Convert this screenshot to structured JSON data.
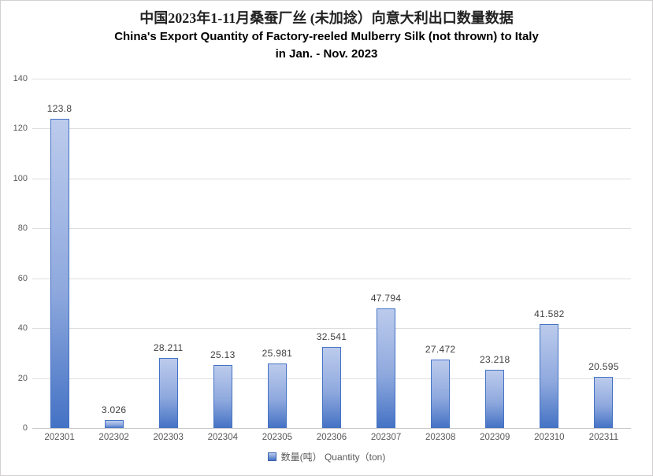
{
  "title": {
    "line1": "中国2023年1-11月桑蚕厂丝 (未加捻）向意大利出口数量数据",
    "line2": "China's Export Quantity of Factory-reeled Mulberry Silk (not thrown) to Italy",
    "line3": "in Jan. - Nov. 2023"
  },
  "legend": {
    "label": "数量(吨） Quantity（ton)"
  },
  "chart_data": {
    "type": "bar",
    "title": "中国2023年1-11月桑蚕厂丝 (未加捻）向意大利出口数量数据",
    "subtitle": "China's Export Quantity of Factory-reeled Mulberry Silk (not thrown) to Italy in Jan. - Nov. 2023",
    "categories": [
      "202301",
      "202302",
      "202303",
      "202304",
      "202305",
      "202306",
      "202307",
      "202308",
      "202309",
      "202310",
      "202311"
    ],
    "values": [
      123.8,
      3.026,
      28.211,
      25.13,
      25.981,
      32.541,
      47.794,
      27.472,
      23.218,
      41.582,
      20.595
    ],
    "value_labels": [
      "123.8",
      "3.026",
      "28.211",
      "25.13",
      "25.981",
      "32.541",
      "47.794",
      "27.472",
      "23.218",
      "41.582",
      "20.595"
    ],
    "series_name": "数量(吨） Quantity（ton)",
    "xlabel": "",
    "ylabel": "",
    "ylim": [
      0,
      140
    ],
    "yticks": [
      0,
      20,
      40,
      60,
      80,
      100,
      120,
      140
    ],
    "grid": true,
    "legend_position": "bottom",
    "colors": {
      "bar_fill_top": "#bccbec",
      "bar_fill_bottom": "#4472c4",
      "bar_border": "#4472c4",
      "gridline": "#dedede",
      "axis_line": "#c9c9c9",
      "tick_label": "#595959",
      "data_label": "#404040",
      "title": "#222222",
      "background": "#ffffff"
    }
  }
}
